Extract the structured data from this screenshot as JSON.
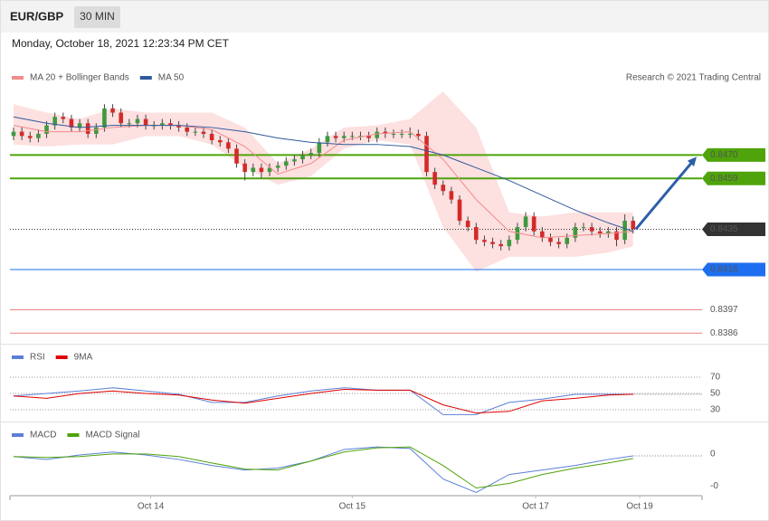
{
  "header": {
    "symbol": "EUR/GBP",
    "interval": "30 MIN",
    "timestamp": "Monday, October 18, 2021 12:23:34 PM CET"
  },
  "chart_data": [
    {
      "type": "candlestick",
      "source": "Research © 2021 Trading Central",
      "xlim": [
        -0.44,
        83.35
      ],
      "ylim": [
        0.8381,
        0.8509
      ],
      "up_color": "#3d9a3d",
      "down_color": "#d42a2a",
      "open": [
        0.8479,
        0.8481,
        0.8479,
        0.8478,
        0.848,
        0.8484,
        0.8488,
        0.8487,
        0.8483,
        0.8485,
        0.848,
        0.8483,
        0.8492,
        0.849,
        0.8485,
        0.8485,
        0.8487,
        0.8484,
        0.8484,
        0.8485,
        0.8484,
        0.8483,
        0.8481,
        0.8481,
        0.848,
        0.8477,
        0.8476,
        0.8473,
        0.8466,
        0.8462,
        0.8464,
        0.8462,
        0.8464,
        0.8465,
        0.8467,
        0.8468,
        0.847,
        0.8471,
        0.8476,
        0.8479,
        0.8478,
        0.8479,
        0.8479,
        0.8479,
        0.8478,
        0.8481,
        0.848,
        0.848,
        0.848,
        0.848,
        0.8479,
        0.8462,
        0.8456,
        0.8453,
        0.8449,
        0.8439,
        0.8436,
        0.843,
        0.8429,
        0.8428,
        0.8427,
        0.843,
        0.8436,
        0.8441,
        0.8434,
        0.8431,
        0.8429,
        0.8428,
        0.8431,
        0.8436,
        0.8436,
        0.8434,
        0.8433,
        0.8434,
        0.843,
        0.8439
      ],
      "high": [
        0.8483,
        0.8483,
        0.8481,
        0.8482,
        0.8486,
        0.849,
        0.849,
        0.8489,
        0.8487,
        0.8487,
        0.8485,
        0.8494,
        0.8494,
        0.8492,
        0.8487,
        0.8489,
        0.8489,
        0.8486,
        0.8487,
        0.8487,
        0.8486,
        0.8485,
        0.8483,
        0.8483,
        0.8482,
        0.8479,
        0.8478,
        0.8475,
        0.8468,
        0.8466,
        0.8466,
        0.8466,
        0.8467,
        0.8469,
        0.847,
        0.8472,
        0.8473,
        0.8478,
        0.8481,
        0.8481,
        0.8481,
        0.8481,
        0.8481,
        0.8481,
        0.8483,
        0.8483,
        0.8482,
        0.8482,
        0.8483,
        0.8482,
        0.8481,
        0.8464,
        0.8458,
        0.8455,
        0.8451,
        0.8441,
        0.8438,
        0.8432,
        0.8431,
        0.843,
        0.8432,
        0.8438,
        0.8443,
        0.8443,
        0.8436,
        0.8433,
        0.8431,
        0.8433,
        0.8438,
        0.8438,
        0.8438,
        0.8436,
        0.8436,
        0.8436,
        0.8442,
        0.8441
      ],
      "low": [
        0.8477,
        0.8477,
        0.8476,
        0.8476,
        0.8478,
        0.8482,
        0.8485,
        0.8481,
        0.8481,
        0.8478,
        0.8478,
        0.8481,
        0.8488,
        0.8483,
        0.8483,
        0.8483,
        0.8482,
        0.8482,
        0.8482,
        0.8482,
        0.8481,
        0.8479,
        0.8479,
        0.8478,
        0.8475,
        0.8474,
        0.8471,
        0.8464,
        0.8458,
        0.846,
        0.8459,
        0.846,
        0.8462,
        0.8463,
        0.8465,
        0.8466,
        0.8468,
        0.8469,
        0.8474,
        0.8476,
        0.8476,
        0.8477,
        0.8477,
        0.8476,
        0.8476,
        0.8478,
        0.8478,
        0.8478,
        0.8478,
        0.8477,
        0.846,
        0.8454,
        0.8451,
        0.8447,
        0.8437,
        0.8434,
        0.8428,
        0.8427,
        0.8426,
        0.8425,
        0.8425,
        0.8428,
        0.8434,
        0.8432,
        0.8429,
        0.8427,
        0.8426,
        0.8426,
        0.8429,
        0.8434,
        0.8432,
        0.8431,
        0.8431,
        0.8427,
        0.8428,
        0.8433
      ],
      "close": [
        0.8481,
        0.8479,
        0.8478,
        0.848,
        0.8484,
        0.8488,
        0.8487,
        0.8483,
        0.8485,
        0.848,
        0.8483,
        0.8492,
        0.849,
        0.8485,
        0.8485,
        0.8487,
        0.8484,
        0.8484,
        0.8485,
        0.8484,
        0.8483,
        0.8481,
        0.8481,
        0.848,
        0.8477,
        0.8476,
        0.8473,
        0.8466,
        0.8462,
        0.8464,
        0.8462,
        0.8464,
        0.8465,
        0.8467,
        0.8468,
        0.847,
        0.8471,
        0.8476,
        0.8479,
        0.8478,
        0.8479,
        0.8479,
        0.8479,
        0.8478,
        0.8481,
        0.848,
        0.848,
        0.848,
        0.848,
        0.8479,
        0.8462,
        0.8456,
        0.8453,
        0.8449,
        0.8439,
        0.8436,
        0.843,
        0.8429,
        0.8428,
        0.8427,
        0.843,
        0.8436,
        0.8441,
        0.8434,
        0.8431,
        0.8429,
        0.8428,
        0.8431,
        0.8436,
        0.8436,
        0.8434,
        0.8433,
        0.8434,
        0.843,
        0.8439,
        0.8435
      ],
      "series": [
        {
          "name": "MA 20 + Bollinger Bands",
          "color": "#f28b8b",
          "band_color": "#fde0e0",
          "x": [
            0,
            4,
            8,
            12,
            16,
            20,
            24,
            28,
            32,
            36,
            40,
            44,
            48,
            52,
            56,
            60,
            64,
            68,
            72,
            75
          ],
          "values": [
            0.8484,
            0.8481,
            0.8481,
            0.8483,
            0.8484,
            0.8484,
            0.8482,
            0.8474,
            0.8461,
            0.8466,
            0.8477,
            0.848,
            0.8481,
            0.8468,
            0.8449,
            0.8434,
            0.8431,
            0.8432,
            0.8433,
            0.8434
          ],
          "upper": [
            0.8494,
            0.849,
            0.8487,
            0.8492,
            0.849,
            0.849,
            0.849,
            0.8483,
            0.8466,
            0.8473,
            0.8483,
            0.8484,
            0.8487,
            0.85,
            0.8483,
            0.8443,
            0.8441,
            0.8443,
            0.8443,
            0.8443
          ],
          "lower": [
            0.8475,
            0.8474,
            0.8475,
            0.8475,
            0.8479,
            0.8479,
            0.8475,
            0.8464,
            0.8456,
            0.846,
            0.8473,
            0.8477,
            0.8475,
            0.8436,
            0.8415,
            0.8422,
            0.8422,
            0.8422,
            0.8424,
            0.8427
          ]
        },
        {
          "name": "MA 50",
          "color": "#2e5a9c",
          "x": [
            0,
            4,
            8,
            12,
            16,
            20,
            24,
            28,
            32,
            36,
            40,
            44,
            48,
            52,
            56,
            60,
            64,
            68,
            72,
            75
          ],
          "values": [
            0.8488,
            0.8485,
            0.8483,
            0.8484,
            0.8484,
            0.8484,
            0.8483,
            0.8481,
            0.8478,
            0.8476,
            0.8475,
            0.8475,
            0.8474,
            0.847,
            0.8464,
            0.8458,
            0.8451,
            0.8444,
            0.8438,
            0.8434
          ]
        }
      ],
      "levels": [
        {
          "value": 0.847,
          "label": "0.8470",
          "color": "#4ea40a",
          "style": "box"
        },
        {
          "value": 0.8459,
          "label": "0.8459",
          "color": "#4ea40a",
          "style": "box"
        },
        {
          "value": 0.8435,
          "label": "0.8435",
          "color": "#333333",
          "style": "box-dotted"
        },
        {
          "value": 0.8416,
          "label": "0.8416",
          "color": "#1e6ff0",
          "style": "box"
        },
        {
          "value": 0.8397,
          "label": "0.8397",
          "color": "#e05050",
          "style": "text"
        },
        {
          "value": 0.8386,
          "label": "0.8386",
          "color": "#e05050",
          "style": "text"
        }
      ]
    },
    {
      "type": "line",
      "xlim": [
        -0.44,
        83.35
      ],
      "ylim": [
        20,
        80
      ],
      "yticks": [
        30,
        50,
        70
      ],
      "grid": "dotted",
      "series": [
        {
          "name": "RSI",
          "color": "#5b7fd6",
          "x": [
            0,
            4,
            8,
            12,
            16,
            20,
            24,
            28,
            32,
            36,
            40,
            44,
            48,
            52,
            56,
            60,
            64,
            68,
            72,
            75
          ],
          "values": [
            47,
            50,
            53,
            57,
            53,
            49,
            39,
            39,
            47,
            53,
            57,
            54,
            54,
            24,
            24,
            39,
            43,
            49,
            49,
            49
          ]
        },
        {
          "name": "9MA",
          "color": "#e00000",
          "x": [
            0,
            4,
            8,
            12,
            16,
            20,
            24,
            28,
            32,
            36,
            40,
            44,
            48,
            52,
            56,
            60,
            64,
            68,
            72,
            75
          ],
          "values": [
            47,
            44,
            50,
            53,
            50,
            48,
            42,
            38,
            44,
            50,
            55,
            54,
            54,
            36,
            26,
            28,
            41,
            44,
            48,
            49
          ]
        }
      ]
    },
    {
      "type": "line",
      "xlim": [
        -0.44,
        83.35
      ],
      "ylim": [
        -0.0013,
        0.0009
      ],
      "yticks": [
        0,
        {
          "value": -0.001,
          "label": "-0"
        }
      ],
      "xticks": [
        {
          "value": 16.6,
          "label": "Oct 14"
        },
        {
          "value": 41.0,
          "label": "Oct 15"
        },
        {
          "value": 63.2,
          "label": "Oct 17"
        },
        {
          "value": 75.8,
          "label": "Oct 19"
        }
      ],
      "series": [
        {
          "name": "MACD",
          "color": "#5b7fd6",
          "x": [
            0,
            4,
            8,
            12,
            16,
            20,
            24,
            28,
            32,
            36,
            40,
            44,
            48,
            52,
            56,
            60,
            64,
            68,
            72,
            75
          ],
          "values": [
            -8e-05,
            -0.00017,
            -3e-05,
            6e-05,
            -3e-05,
            -0.00017,
            -0.00036,
            -0.0005,
            -0.00044,
            -0.00022,
            0.00014,
            0.00022,
            0.00017,
            -0.00078,
            -0.0012,
            -0.00064,
            -0.0005,
            -0.00036,
            -0.00017,
            -6e-05
          ]
        },
        {
          "name": "MACD Signal",
          "color": "#4ea40a",
          "x": [
            0,
            4,
            8,
            12,
            16,
            20,
            24,
            28,
            32,
            36,
            40,
            44,
            48,
            52,
            56,
            60,
            64,
            68,
            72,
            75
          ],
          "values": [
            -8e-05,
            -0.00011,
            -8e-05,
            0,
            0,
            -8e-05,
            -0.00028,
            -0.00047,
            -0.0005,
            -0.00022,
            6e-05,
            0.00019,
            0.00022,
            -0.00036,
            -0.00106,
            -0.00092,
            -0.00064,
            -0.00044,
            -0.00028,
            -0.00014
          ]
        }
      ]
    }
  ]
}
